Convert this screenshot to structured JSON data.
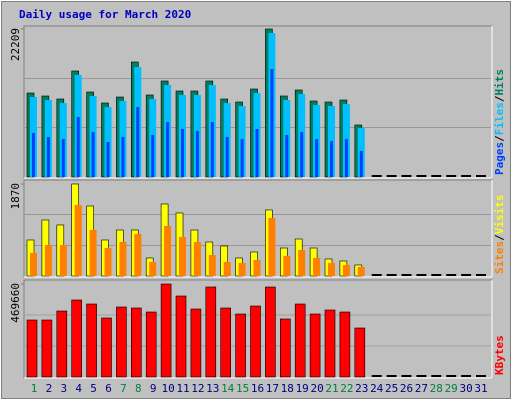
{
  "chart_data": [
    {
      "type": "bar",
      "title": "Daily usage for March 2020",
      "separator": "/",
      "ylim": [
        0,
        22209
      ],
      "yticks": [
        22209
      ],
      "series": [
        {
          "name": "Pages",
          "color": "#0040ff",
          "values": [
            6600,
            6000,
            5700,
            9000,
            6750,
            5250,
            6000,
            10500,
            6300,
            8250,
            7200,
            6900,
            8250,
            6000,
            5700,
            7200,
            16200,
            6300,
            6750,
            5700,
            5400,
            5700,
            3900,
            0,
            0,
            0,
            0,
            0,
            0,
            0,
            0
          ]
        },
        {
          "name": "Files",
          "color": "#00c0ff",
          "values": [
            12005,
            11555,
            11104,
            15306,
            12155,
            10504,
            11405,
            16507,
            11705,
            13805,
            12305,
            12305,
            13805,
            11104,
            10654,
            12605,
            21609,
            11555,
            12455,
            10804,
            10654,
            10954,
            7353,
            0,
            0,
            0,
            0,
            0,
            0,
            0,
            0
          ]
        },
        {
          "name": "Hits",
          "color": "#008060",
          "values": [
            12605,
            12155,
            11705,
            15906,
            12755,
            11104,
            12005,
            17257,
            12305,
            14406,
            12905,
            12905,
            14406,
            11705,
            11255,
            13205,
            22209,
            12155,
            13055,
            11405,
            11255,
            11555,
            7803,
            0,
            0,
            0,
            0,
            0,
            0,
            0,
            0
          ]
        }
      ]
    },
    {
      "type": "bar",
      "separator": "/",
      "ylim": [
        0,
        1870
      ],
      "yticks": [
        1870
      ],
      "series": [
        {
          "name": "Sites",
          "color": "#ff8000",
          "values": [
            468,
            630,
            630,
            1443,
            935,
            569,
            691,
            854,
            285,
            1017,
            793,
            691,
            427,
            285,
            264,
            325,
            1179,
            407,
            529,
            366,
            264,
            224,
            183,
            0,
            0,
            0,
            0,
            0,
            0,
            0,
            0
          ]
        },
        {
          "name": "Visits",
          "color": "#ffff00",
          "values": [
            732,
            1138,
            1037,
            1870,
            1423,
            732,
            935,
            935,
            366,
            1464,
            1281,
            935,
            691,
            610,
            366,
            488,
            1342,
            569,
            752,
            569,
            346,
            305,
            224,
            0,
            0,
            0,
            0,
            0,
            0,
            0,
            0
          ]
        }
      ]
    },
    {
      "type": "bar",
      "ylim": [
        0,
        469660
      ],
      "yticks": [
        469660
      ],
      "series": [
        {
          "name": "KBytes",
          "color": "#ff0000",
          "values": [
            287850,
            287850,
            333300,
            388850,
            368650,
            297950,
            353500,
            348450,
            328250,
            469660,
            409050,
            343400,
            454500,
            348450,
            318150,
            358550,
            454500,
            292900,
            368650,
            318150,
            338350,
            328250,
            247450,
            0,
            0,
            0,
            0,
            0,
            0,
            0,
            0
          ]
        }
      ],
      "categories": [
        "1",
        "2",
        "3",
        "4",
        "5",
        "6",
        "7",
        "8",
        "9",
        "10",
        "11",
        "12",
        "13",
        "14",
        "15",
        "16",
        "17",
        "18",
        "19",
        "20",
        "21",
        "22",
        "23",
        "24",
        "25",
        "26",
        "27",
        "28",
        "29",
        "30",
        "31"
      ],
      "label_colors": [
        "#008040",
        "#000080",
        "#000080",
        "#000080",
        "#000080",
        "#000080",
        "#008040",
        "#008040",
        "#000080",
        "#000080",
        "#000080",
        "#000080",
        "#000080",
        "#008040",
        "#008040",
        "#000080",
        "#000080",
        "#000080",
        "#000080",
        "#000080",
        "#008040",
        "#008040",
        "#000080",
        "#000080",
        "#000080",
        "#000080",
        "#000080",
        "#008040",
        "#008040",
        "#000080",
        "#000080"
      ]
    }
  ]
}
